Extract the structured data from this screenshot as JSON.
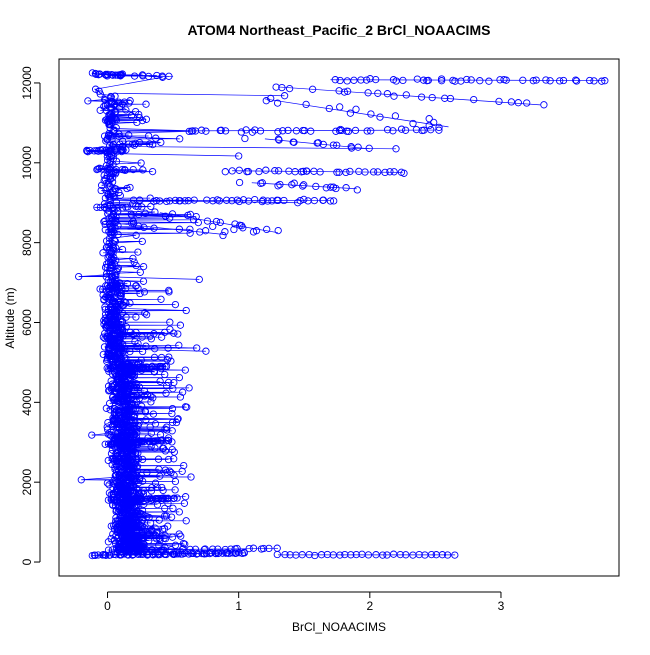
{
  "chart_data": {
    "type": "scatter",
    "title": "ATOM4 Northeast_Pacific_2 BrCl_NOAACIMS",
    "xlabel": "BrCl_NOAACIMS",
    "ylabel": "Altitude (m)",
    "xlim": [
      -0.37,
      3.9
    ],
    "ylim": [
      -350,
      12600
    ],
    "xticks": [
      0,
      1,
      2,
      3
    ],
    "yticks": [
      0,
      2000,
      4000,
      6000,
      8000,
      10000,
      12000
    ],
    "grid": false,
    "legend": "none",
    "series_color": "#0000ff",
    "marker": "open-circle",
    "connect_points": true,
    "segments": [
      {
        "x0": -0.12,
        "x1": 0.12,
        "y0": 12230,
        "y1": 12180,
        "n": 18,
        "spread": 0.08
      },
      {
        "x0": 0.1,
        "x1": 0.5,
        "y0": 12200,
        "y1": 12160,
        "n": 10,
        "spread": 0.1
      },
      {
        "x0": -0.1,
        "x1": 0.3,
        "y0": 11850,
        "y1": 11000,
        "n": 14,
        "spread": 0.12
      },
      {
        "x0": 1.7,
        "x1": 3.8,
        "y0": 12080,
        "y1": 12060,
        "n": 40,
        "spread": 0.12
      },
      {
        "x0": 1.3,
        "x1": 3.3,
        "y0": 11900,
        "y1": 11450,
        "n": 22,
        "spread": 0.25
      },
      {
        "x0": 1.2,
        "x1": 2.6,
        "y0": 11600,
        "y1": 10900,
        "n": 16,
        "spread": 0.3
      },
      {
        "x0": 0.6,
        "x1": 2.5,
        "y0": 10800,
        "y1": 10820,
        "n": 38,
        "spread": 0.15
      },
      {
        "x0": 1.2,
        "x1": 2.0,
        "y0": 10600,
        "y1": 10350,
        "n": 14,
        "spread": 0.2
      },
      {
        "x0": -0.15,
        "x1": 0.15,
        "y0": 10300,
        "y1": 10320,
        "n": 26,
        "spread": 0.06
      },
      {
        "x0": 0.0,
        "x1": 0.4,
        "y0": 10450,
        "y1": 10500,
        "n": 10,
        "spread": 0.1
      },
      {
        "x0": 0.95,
        "x1": 2.25,
        "y0": 9800,
        "y1": 9760,
        "n": 30,
        "spread": 0.15
      },
      {
        "x0": 1.1,
        "x1": 1.9,
        "y0": 9500,
        "y1": 9350,
        "n": 16,
        "spread": 0.2
      },
      {
        "x0": -0.1,
        "x1": 0.3,
        "y0": 9850,
        "y1": 9800,
        "n": 12,
        "spread": 0.08
      },
      {
        "x0": 0.2,
        "x1": 1.7,
        "y0": 9050,
        "y1": 9060,
        "n": 40,
        "spread": 0.1
      },
      {
        "x0": 0.4,
        "x1": 1.3,
        "y0": 8750,
        "y1": 8250,
        "n": 22,
        "spread": 0.3
      },
      {
        "x0": -0.1,
        "x1": 0.3,
        "y0": 8880,
        "y1": 8900,
        "n": 14,
        "spread": 0.06
      },
      {
        "x0": 0.02,
        "x1": 0.9,
        "y0": 8500,
        "y1": 8200,
        "n": 14,
        "spread": 0.25
      }
    ],
    "bands": [
      {
        "y0": 7000,
        "y1": 11700,
        "xc": 0.02,
        "xw": 0.18,
        "n": 240,
        "tail": 0.3
      },
      {
        "y0": 5000,
        "y1": 7000,
        "xc": 0.05,
        "xw": 0.25,
        "n": 300,
        "tail": 0.5
      },
      {
        "y0": 3000,
        "y1": 5000,
        "xc": 0.12,
        "xw": 0.32,
        "n": 380,
        "tail": 0.45
      },
      {
        "y0": 1000,
        "y1": 3000,
        "xc": 0.14,
        "xw": 0.34,
        "n": 420,
        "tail": 0.45
      },
      {
        "y0": 250,
        "y1": 1000,
        "xc": 0.17,
        "xw": 0.35,
        "n": 260,
        "tail": 0.4
      }
    ],
    "bottom_rows": [
      {
        "x0": -0.1,
        "x1": 1.05,
        "y0": 170,
        "y1": 230,
        "n": 80,
        "spread": 0.04
      },
      {
        "x0": 1.3,
        "x1": 2.65,
        "y0": 180,
        "y1": 180,
        "n": 30,
        "spread": 0.02
      },
      {
        "x0": 0.0,
        "x1": 1.3,
        "y0": 300,
        "y1": 340,
        "n": 30,
        "spread": 0.05
      },
      {
        "x0": 0.0,
        "x1": 0.5,
        "y0": 1550,
        "y1": 1600,
        "n": 40,
        "spread": 0.05
      },
      {
        "x0": 0.0,
        "x1": 0.45,
        "y0": 2950,
        "y1": 3050,
        "n": 40,
        "spread": 0.05
      },
      {
        "x0": 0.0,
        "x1": 0.45,
        "y0": 4850,
        "y1": 4900,
        "n": 40,
        "spread": 0.05
      }
    ],
    "outliers": [
      {
        "x": -0.22,
        "y": 7150
      },
      {
        "x": 0.7,
        "y": 7080
      },
      {
        "x": -0.2,
        "y": 2060
      },
      {
        "x": 0.75,
        "y": 5280
      },
      {
        "x": 0.68,
        "y": 5360
      },
      {
        "x": 1.35,
        "y": 11680
      },
      {
        "x": 1.0,
        "y": 10170
      },
      {
        "x": 0.55,
        "y": 10600
      },
      {
        "x": 2.2,
        "y": 10350
      },
      {
        "x": 1.45,
        "y": 9000
      },
      {
        "x": 0.65,
        "y": 10800
      },
      {
        "x": -0.15,
        "y": 11550
      },
      {
        "x": -0.12,
        "y": 3180
      },
      {
        "x": 0.6,
        "y": 6300
      },
      {
        "x": 0.45,
        "y": 1150
      }
    ]
  }
}
